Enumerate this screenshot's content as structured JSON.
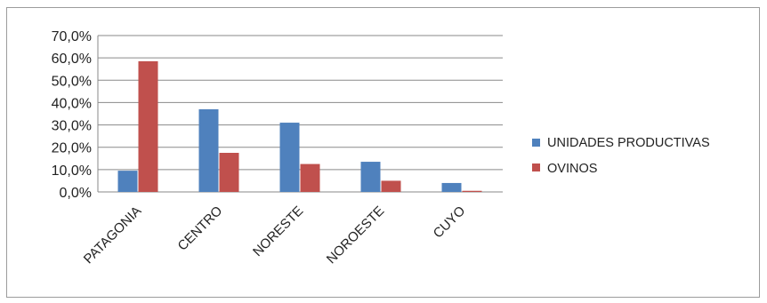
{
  "chart_data": {
    "type": "bar",
    "categories": [
      "PATAGONIA",
      "CENTRO",
      "NORESTE",
      "NOROESTE",
      "CUYO"
    ],
    "series": [
      {
        "name": "UNIDADES PRODUCTIVAS",
        "values": [
          9.5,
          37.0,
          31.0,
          13.5,
          4.0
        ],
        "color": "#4f81bd"
      },
      {
        "name": "OVINOS",
        "values": [
          58.5,
          17.5,
          12.5,
          5.0,
          0.5
        ],
        "color": "#c0504d"
      }
    ],
    "yticks": [
      "0,0%",
      "10,0%",
      "20,0%",
      "30,0%",
      "40,0%",
      "50,0%",
      "60,0%",
      "70,0%"
    ],
    "ylim": [
      0,
      70
    ],
    "grid": true,
    "legend_position": "right",
    "title": "",
    "xlabel": "",
    "ylabel": ""
  }
}
